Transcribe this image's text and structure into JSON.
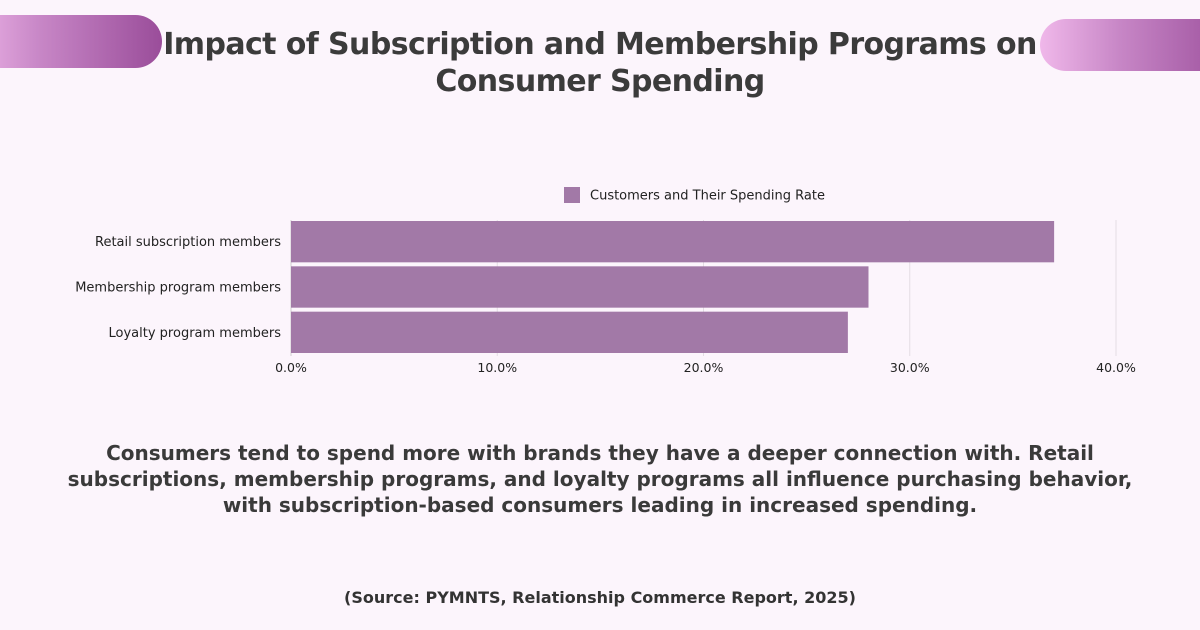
{
  "title": "Impact of Subscription and Membership Programs on Consumer Spending",
  "description": "Consumers tend to spend more with brands they have a deeper connection with. Retail subscriptions, membership programs, and loyalty programs all influence purchasing behavior, with subscription-based consumers leading in increased spending.",
  "source": "(Source: PYMNTS,  Relationship Commerce Report, 2025)",
  "colors": {
    "background": "#fcf5fc",
    "bar": "#a279a7",
    "accent_gradient_start": "#f0b8ea",
    "accent_gradient_end": "#9a4d9a"
  },
  "chart_data": {
    "type": "bar",
    "orientation": "horizontal",
    "categories": [
      "Retail subscription members",
      "Membership program members",
      "Loyalty program members"
    ],
    "series": [
      {
        "name": "Customers and Their Spending Rate",
        "values": [
          37.0,
          28.0,
          27.0
        ]
      }
    ],
    "xlim": [
      0,
      40
    ],
    "x_ticks": [
      0,
      10,
      20,
      30,
      40
    ],
    "x_tick_labels": [
      "0.0%",
      "10.0%",
      "20.0%",
      "30.0%",
      "40.0%"
    ],
    "legend": "top-center",
    "grid": "vertical"
  }
}
